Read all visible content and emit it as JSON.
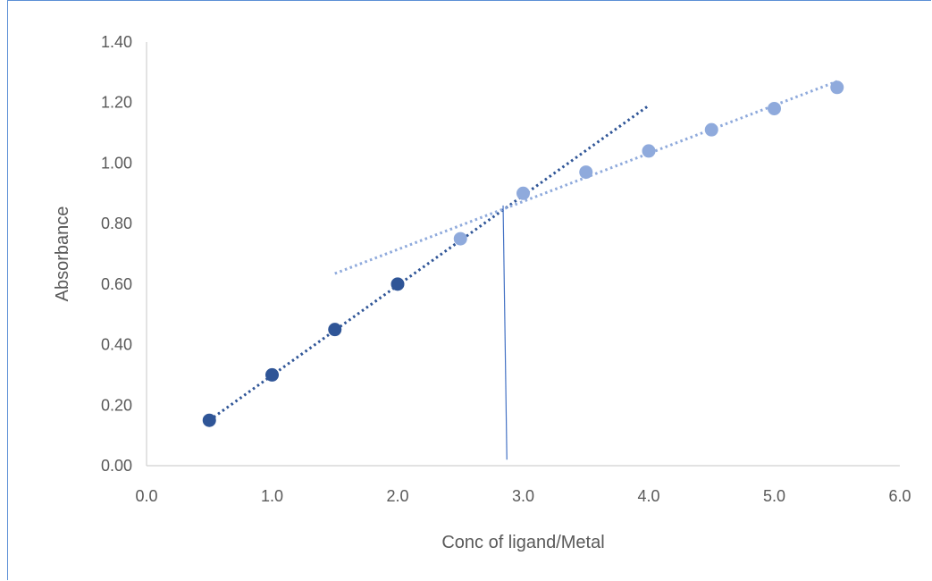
{
  "chart_data": {
    "type": "scatter",
    "title": "",
    "xlabel": "Conc of ligand/Metal",
    "ylabel": "Absorbance",
    "xlim": [
      0,
      6
    ],
    "ylim": [
      0,
      1.4
    ],
    "x_ticks": [
      "0.0",
      "1.0",
      "2.0",
      "3.0",
      "4.0",
      "5.0",
      "6.0"
    ],
    "y_ticks": [
      "0.00",
      "0.20",
      "0.40",
      "0.60",
      "0.80",
      "1.00",
      "1.20",
      "1.40"
    ],
    "grid": false,
    "legend": "none",
    "series": [
      {
        "color": "#2f5597",
        "points": [
          [
            0.5,
            0.15
          ],
          [
            1.0,
            0.3
          ],
          [
            1.5,
            0.45
          ],
          [
            2.0,
            0.6
          ]
        ],
        "trendline": {
          "type": "linear",
          "style": "dotted",
          "from": [
            0.5,
            0.15
          ],
          "to": [
            4.0,
            1.19
          ]
        }
      },
      {
        "color": "#8faadc",
        "points": [
          [
            2.5,
            0.75
          ],
          [
            3.0,
            0.9
          ],
          [
            3.5,
            0.97
          ],
          [
            4.0,
            1.04
          ],
          [
            4.5,
            1.11
          ],
          [
            5.0,
            1.18
          ],
          [
            5.5,
            1.25
          ]
        ],
        "trendline": {
          "type": "linear",
          "style": "dotted",
          "from": [
            1.5,
            0.635
          ],
          "to": [
            5.5,
            1.27
          ]
        }
      }
    ],
    "annotations": [
      {
        "type": "vertical-line",
        "color": "#4472c4",
        "from": [
          2.87,
          0.02
        ],
        "to": [
          2.84,
          0.86
        ]
      }
    ]
  }
}
